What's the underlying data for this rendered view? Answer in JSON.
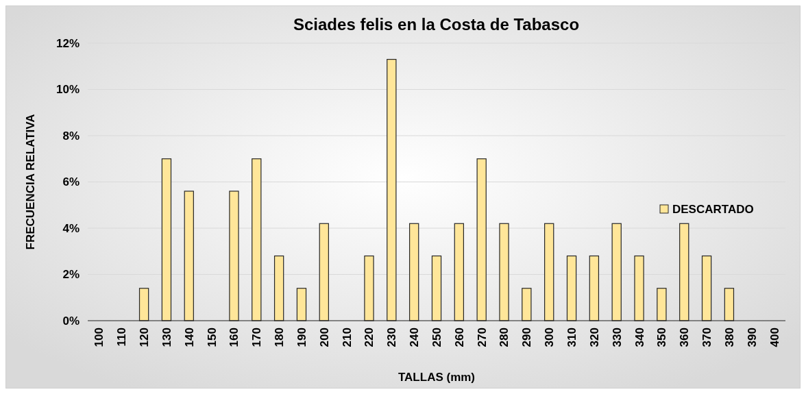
{
  "chart_data": {
    "type": "bar",
    "title": "Sciades felis en la Costa de Tabasco",
    "xlabel": "TALLAS (mm)",
    "ylabel": "FRECUENCIA RELATIVA",
    "categories": [
      "100",
      "110",
      "120",
      "130",
      "140",
      "150",
      "160",
      "170",
      "180",
      "190",
      "200",
      "210",
      "220",
      "230",
      "240",
      "250",
      "260",
      "270",
      "280",
      "290",
      "300",
      "310",
      "320",
      "330",
      "340",
      "350",
      "360",
      "370",
      "380",
      "390",
      "400"
    ],
    "series": [
      {
        "name": "DESCARTADO",
        "color": "#ffe699",
        "values": [
          0,
          0,
          1.4,
          7.0,
          5.6,
          0,
          5.6,
          7.0,
          2.8,
          1.4,
          4.2,
          0,
          2.8,
          11.3,
          4.2,
          2.8,
          4.2,
          7.0,
          4.2,
          1.4,
          4.2,
          2.8,
          2.8,
          4.2,
          2.8,
          1.4,
          4.2,
          2.8,
          1.4,
          0,
          0
        ]
      }
    ],
    "ylim": [
      0,
      12
    ],
    "yticks": [
      {
        "value": 0,
        "label": "0%"
      },
      {
        "value": 2,
        "label": "2%"
      },
      {
        "value": 4,
        "label": "4%"
      },
      {
        "value": 6,
        "label": "6%"
      },
      {
        "value": 8,
        "label": "8%"
      },
      {
        "value": 10,
        "label": "10%"
      },
      {
        "value": 12,
        "label": "12%"
      }
    ],
    "grid": "y",
    "legend": "right"
  }
}
